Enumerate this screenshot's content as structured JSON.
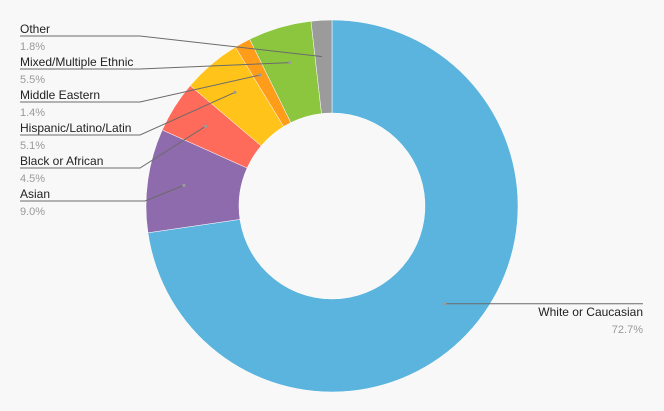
{
  "chart_data": {
    "type": "pie",
    "style": "donut",
    "title": "",
    "categories": [
      "White or Caucasian",
      "Asian",
      "Black or African",
      "Hispanic/Latino/Latin",
      "Middle Eastern",
      "Mixed/Multiple Ethnic",
      "Other"
    ],
    "values": [
      72.7,
      9.0,
      4.5,
      5.1,
      1.4,
      5.5,
      1.8
    ],
    "value_labels": [
      "72.7%",
      "9.0%",
      "4.5%",
      "5.1%",
      "1.4%",
      "5.5%",
      "1.8%"
    ],
    "colors": [
      "#5ab4dd",
      "#8e6bac",
      "#ff6b5a",
      "#ffc31a",
      "#ff9c1a",
      "#8cc63f",
      "#9b9b9b"
    ],
    "legend": "none",
    "slice_labels": "outside with leader lines"
  }
}
